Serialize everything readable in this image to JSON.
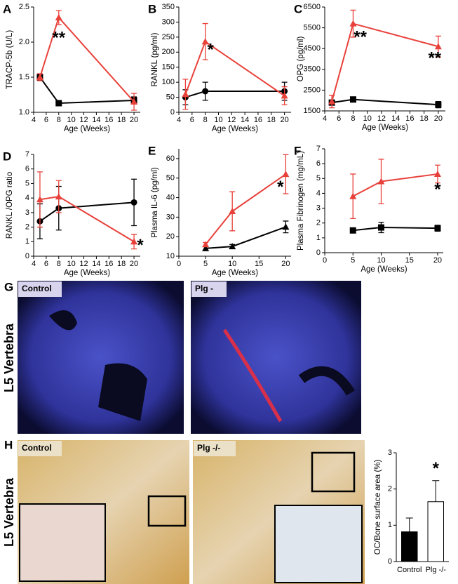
{
  "chart_data": [
    {
      "type": "line",
      "panel": "A",
      "ylabel": "TRACP-5b (U/L)",
      "xlabel": "Age (Weeks)",
      "x": [
        5,
        8,
        20
      ],
      "xlim": [
        4,
        21
      ],
      "xticks": [
        4,
        6,
        8,
        10,
        12,
        14,
        16,
        18,
        20
      ],
      "ylim": [
        1.0,
        2.5
      ],
      "yticks": [
        {
          "value": 1.0,
          "label": "1.0"
        },
        {
          "value": 1.5,
          "label": "1.5"
        },
        {
          "value": 2.0,
          "label": "2.0"
        },
        {
          "value": 2.5,
          "label": "2.5"
        }
      ],
      "series": [
        {
          "color": "#000000",
          "marker": "square",
          "values": [
            1.5,
            1.13,
            1.17
          ],
          "errors": [
            0.03,
            0.03,
            0.05
          ]
        },
        {
          "color": "#e8413a",
          "marker": "triangle",
          "values": [
            1.5,
            2.35,
            1.15
          ],
          "errors": [
            0.05,
            0.1,
            0.12
          ]
        }
      ],
      "annotations": [
        "**"
      ]
    },
    {
      "type": "line",
      "panel": "B",
      "ylabel": "RANKL (pg/ml)",
      "xlabel": "Age (Weeks)",
      "x": [
        5,
        8,
        20
      ],
      "xlim": [
        4,
        21
      ],
      "xticks": [
        4,
        6,
        8,
        10,
        12,
        14,
        16,
        18,
        20
      ],
      "ylim": [
        0,
        350
      ],
      "yticks": [
        0,
        50,
        100,
        150,
        200,
        250,
        300,
        350
      ],
      "series": [
        {
          "color": "#000000",
          "marker": "circle",
          "values": [
            50,
            70,
            70
          ],
          "errors": [
            25,
            30,
            30
          ]
        },
        {
          "color": "#e8413a",
          "marker": "triangle",
          "values": [
            60,
            235,
            55
          ],
          "errors": [
            50,
            60,
            30
          ]
        }
      ],
      "annotations": [
        "*"
      ]
    },
    {
      "type": "line",
      "panel": "C",
      "ylabel": "OPG (pg/ml)",
      "xlabel": "Age (Weeks)",
      "x": [
        5,
        8,
        20
      ],
      "xlim": [
        4,
        21
      ],
      "xticks": [
        4,
        6,
        8,
        10,
        12,
        14,
        16,
        18,
        20
      ],
      "ylim": [
        1500,
        6500
      ],
      "yticks": [
        1500,
        2500,
        3500,
        4500,
        5500,
        6500
      ],
      "series": [
        {
          "color": "#000000",
          "marker": "square",
          "values": [
            1900,
            2050,
            1800
          ],
          "errors": [
            100,
            100,
            150
          ]
        },
        {
          "color": "#e8413a",
          "marker": "triangle",
          "values": [
            1950,
            5700,
            4600
          ],
          "errors": [
            300,
            650,
            500
          ]
        }
      ],
      "annotations": [
        "**",
        "**"
      ]
    },
    {
      "type": "line",
      "panel": "D",
      "ylabel": "RANKL /OPG ratio",
      "xlabel": "Age (Weeks)",
      "x": [
        5,
        8,
        20
      ],
      "xlim": [
        4,
        21
      ],
      "xticks": [
        4,
        6,
        8,
        10,
        12,
        14,
        16,
        18,
        20
      ],
      "ylim": [
        0,
        7
      ],
      "yticks": [
        0,
        1,
        2,
        3,
        4,
        5,
        6,
        7
      ],
      "series": [
        {
          "color": "#000000",
          "marker": "circle",
          "values": [
            2.4,
            3.3,
            3.7
          ],
          "errors": [
            1.2,
            1.5,
            1.6
          ]
        },
        {
          "color": "#e8413a",
          "marker": "triangle",
          "values": [
            3.9,
            4.1,
            1.0
          ],
          "errors": [
            1.9,
            1.1,
            0.5
          ]
        }
      ],
      "annotations": [
        "*"
      ]
    },
    {
      "type": "line",
      "panel": "E",
      "ylabel": "Plasma IL-6 (pg/ml)",
      "xlabel": "Age (Weeks)",
      "x": [
        5,
        10,
        20
      ],
      "xlim": [
        0,
        21
      ],
      "xticks": [
        0,
        5,
        10,
        15,
        20
      ],
      "ylim": [
        10,
        65
      ],
      "yticks": [
        10,
        20,
        30,
        40,
        50,
        60
      ],
      "series": [
        {
          "color": "#000000",
          "marker": "triangle",
          "values": [
            14,
            15,
            25
          ],
          "errors": [
            1,
            1,
            3
          ]
        },
        {
          "color": "#e8413a",
          "marker": "triangle",
          "values": [
            16,
            33,
            52
          ],
          "errors": [
            1,
            10,
            10
          ]
        }
      ],
      "annotations": [
        "*"
      ]
    },
    {
      "type": "line",
      "panel": "F",
      "ylabel": "Plasma Fibrinogen (mg/mL)",
      "xlabel": "Age (Weeks)",
      "x": [
        5,
        10,
        20
      ],
      "xlim": [
        0,
        21
      ],
      "xticks": [
        0,
        5,
        10,
        15,
        20
      ],
      "ylim": [
        0,
        7
      ],
      "yticks": [
        0,
        1,
        2,
        3,
        4,
        5,
        6,
        7
      ],
      "series": [
        {
          "color": "#000000",
          "marker": "square",
          "values": [
            1.5,
            1.7,
            1.65
          ],
          "errors": [
            0.15,
            0.35,
            0.2
          ]
        },
        {
          "color": "#e8413a",
          "marker": "triangle",
          "values": [
            3.8,
            4.8,
            5.3
          ],
          "errors": [
            1.5,
            1.5,
            0.6
          ]
        }
      ],
      "annotations": [
        "*"
      ]
    },
    {
      "type": "bar",
      "ylabel": "OC/Bone surface area (%)",
      "categories": [
        "Control",
        "Plg -/-"
      ],
      "values": [
        0.82,
        1.65
      ],
      "errors": [
        0.38,
        0.58
      ],
      "colors": [
        "#000000",
        "#ffffff"
      ],
      "ylim": [
        0,
        3
      ],
      "yticks": [
        0,
        1,
        2,
        3
      ],
      "annotations": [
        "*"
      ]
    }
  ],
  "panels": {
    "G": {
      "letter": "G",
      "side_label": "L5 Vertebra",
      "images": [
        "Control",
        "Plg -"
      ]
    },
    "H": {
      "letter": "H",
      "side_label": "L5 Vertebra",
      "images": [
        "Control",
        "Plg -/-"
      ]
    }
  }
}
